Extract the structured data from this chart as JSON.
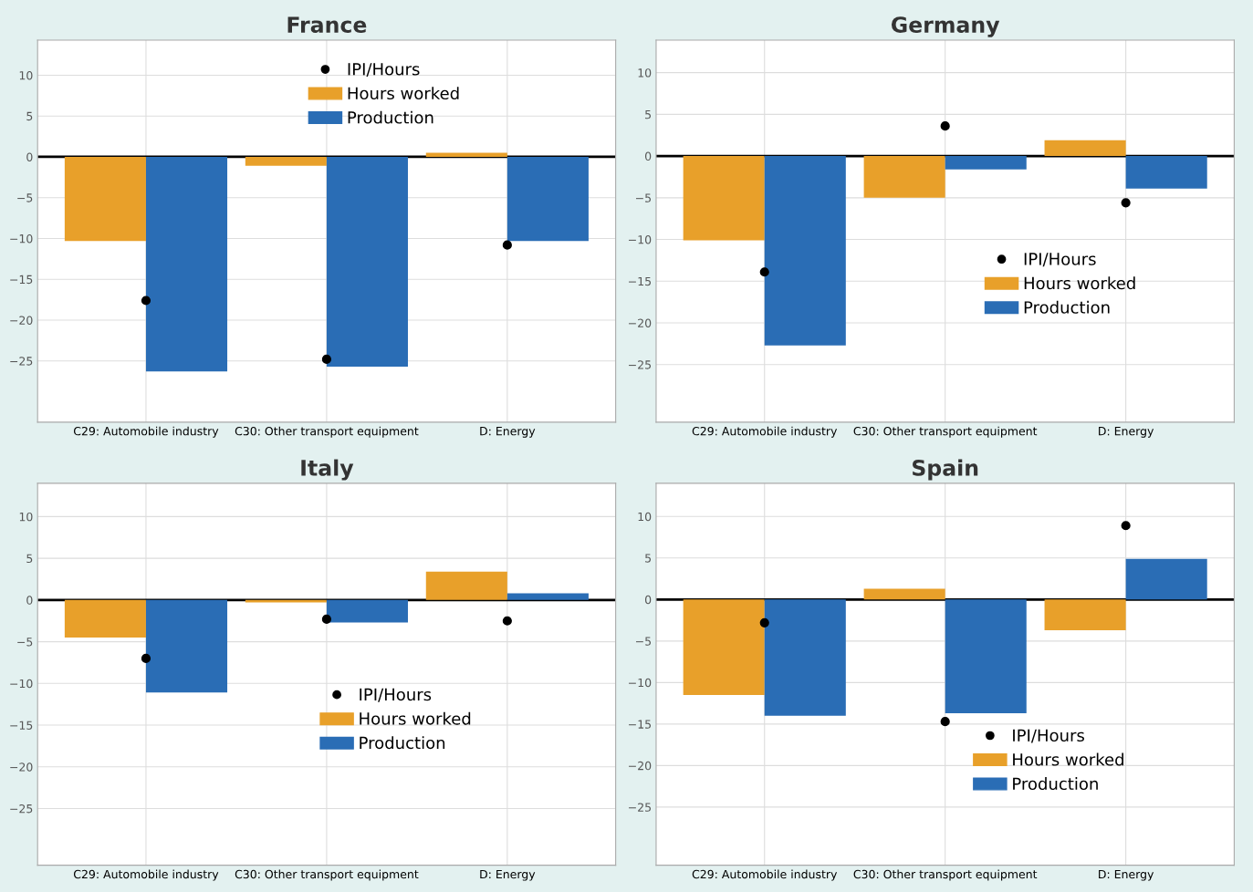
{
  "chart_data": [
    {
      "type": "bar",
      "title": "France",
      "categories": [
        "C29: Automobile industry",
        "C30: Other transport equipment",
        "D: Energy"
      ],
      "ylim": [
        -32.5,
        14.3
      ],
      "yticks": [
        {
          "value": -25,
          "label": "−25"
        },
        {
          "value": -20,
          "label": "−20"
        },
        {
          "value": -15,
          "label": "−15"
        },
        {
          "value": -10,
          "label": "−10"
        },
        {
          "value": -5,
          "label": "−5"
        },
        0,
        5,
        10
      ],
      "grid": true,
      "legend": "top",
      "ref_lines": [
        {
          "axis": "y",
          "value": 0,
          "color": "#000000"
        }
      ],
      "series": [
        {
          "name": "IPI/Hours",
          "type": "scatter",
          "color": "#000000",
          "values": [
            -17.6,
            -24.8,
            -10.8
          ]
        },
        {
          "name": "Hours worked",
          "color": "#e8a02a",
          "values": [
            -10.3,
            -1.1,
            0.5
          ]
        },
        {
          "name": "Production",
          "color": "#2a6db5",
          "values": [
            -26.3,
            -25.7,
            -10.3
          ]
        }
      ]
    },
    {
      "type": "bar",
      "title": "Germany",
      "categories": [
        "C29: Automobile industry",
        "C30: Other transport equipment",
        "D: Energy"
      ],
      "ylim": [
        -31.9,
        13.9
      ],
      "yticks": [
        {
          "value": -25,
          "label": "−25"
        },
        {
          "value": -20,
          "label": "−20"
        },
        {
          "value": -15,
          "label": "−15"
        },
        {
          "value": -10,
          "label": "−10"
        },
        {
          "value": -5,
          "label": "−5"
        },
        0,
        5,
        10
      ],
      "grid": true,
      "legend": "right",
      "ref_lines": [
        {
          "axis": "y",
          "value": 0,
          "color": "#000000"
        }
      ],
      "series": [
        {
          "name": "IPI/Hours",
          "type": "scatter",
          "color": "#000000",
          "values": [
            -13.9,
            3.6,
            -5.6
          ]
        },
        {
          "name": "Hours worked",
          "color": "#e8a02a",
          "values": [
            -10.1,
            -5.0,
            1.9
          ]
        },
        {
          "name": "Production",
          "color": "#2a6db5",
          "values": [
            -22.7,
            -1.6,
            -3.9
          ]
        }
      ]
    },
    {
      "type": "bar",
      "title": "Italy",
      "categories": [
        "C29: Automobile industry",
        "C30: Other transport equipment",
        "D: Energy"
      ],
      "ylim": [
        -31.8,
        14.0
      ],
      "yticks": [
        {
          "value": -25,
          "label": "−25"
        },
        {
          "value": -20,
          "label": "−20"
        },
        {
          "value": -15,
          "label": "−15"
        },
        {
          "value": -10,
          "label": "−10"
        },
        {
          "value": -5,
          "label": "−5"
        },
        0,
        5,
        10
      ],
      "grid": true,
      "legend": "center",
      "ref_lines": [
        {
          "axis": "y",
          "value": 0,
          "color": "#000000"
        }
      ],
      "series": [
        {
          "name": "IPI/Hours",
          "type": "scatter",
          "color": "#000000",
          "values": [
            -7.0,
            -2.3,
            -2.5
          ]
        },
        {
          "name": "Hours worked",
          "color": "#e8a02a",
          "values": [
            -4.5,
            -0.3,
            3.4
          ]
        },
        {
          "name": "Production",
          "color": "#2a6db5",
          "values": [
            -11.1,
            -2.7,
            0.8
          ]
        }
      ]
    },
    {
      "type": "bar",
      "title": "Spain",
      "categories": [
        "C29: Automobile industry",
        "C30: Other transport equipment",
        "D: Energy"
      ],
      "ylim": [
        -32.0,
        14.0
      ],
      "yticks": [
        {
          "value": -25,
          "label": "−25"
        },
        {
          "value": -20,
          "label": "−20"
        },
        {
          "value": -15,
          "label": "−15"
        },
        {
          "value": -10,
          "label": "−10"
        },
        {
          "value": -5,
          "label": "−5"
        },
        0,
        5,
        10
      ],
      "grid": true,
      "legend": "bottom right",
      "ref_lines": [
        {
          "axis": "y",
          "value": 0,
          "color": "#000000"
        }
      ],
      "series": [
        {
          "name": "IPI/Hours",
          "type": "scatter",
          "color": "#000000",
          "values": [
            -2.8,
            -14.7,
            8.9
          ]
        },
        {
          "name": "Hours worked",
          "color": "#e8a02a",
          "values": [
            -11.5,
            1.3,
            -3.7
          ]
        },
        {
          "name": "Production",
          "color": "#2a6db5",
          "values": [
            -14.0,
            -13.7,
            4.9
          ]
        }
      ]
    }
  ]
}
